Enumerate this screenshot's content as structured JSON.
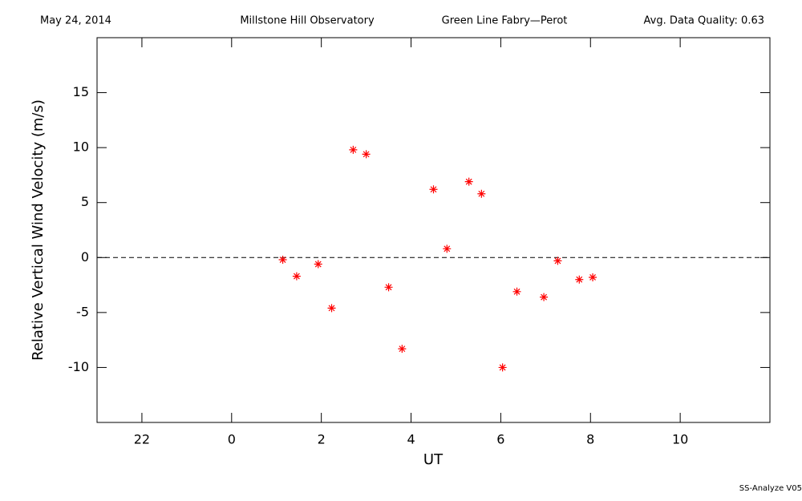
{
  "chart_data": {
    "type": "scatter",
    "header": {
      "date": "May 24, 2014",
      "observatory": "Millstone Hill Observatory",
      "instrument": "Green Line Fabry—Perot",
      "quality": "Avg. Data Quality: 0.63"
    },
    "footer": "SS-Analyze V05",
    "x_label": "UT",
    "y_label": "Relative Vertical Wind Velocity (m/s)",
    "xlim": [
      -3,
      12
    ],
    "ylim": [
      -15,
      20
    ],
    "xticks": [
      {
        "value": -2,
        "label": "22"
      },
      0,
      2,
      4,
      6,
      8,
      10
    ],
    "yticks": [
      -10,
      -5,
      0,
      5,
      10,
      15
    ],
    "reference_line": 0,
    "color": "#ff0000",
    "x": [
      1.14,
      1.45,
      1.93,
      2.23,
      2.71,
      3.0,
      3.5,
      3.8,
      4.5,
      4.8,
      5.29,
      5.57,
      6.04,
      6.36,
      6.96,
      7.27,
      7.75,
      8.05
    ],
    "values": [
      -0.2,
      -1.7,
      -0.6,
      -4.6,
      9.8,
      9.4,
      -2.7,
      -8.3,
      6.2,
      0.8,
      6.9,
      5.8,
      -10.0,
      -3.1,
      -3.6,
      -0.3,
      -2.0,
      -1.8
    ]
  }
}
